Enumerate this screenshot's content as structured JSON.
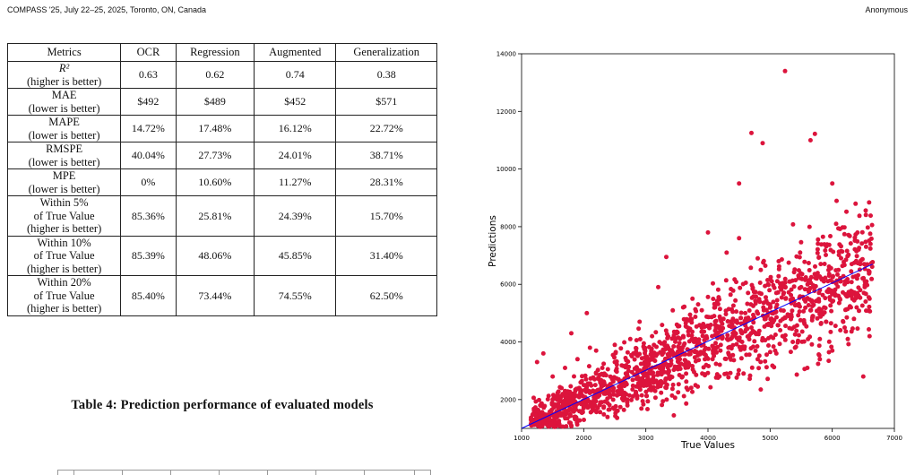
{
  "header": {
    "venue": "COMPASS '25, July 22–25, 2025, Toronto, ON, Canada",
    "author": "Anonymous"
  },
  "table": {
    "caption": "Table 4: Prediction performance of evaluated models",
    "columns": [
      "Metrics",
      "OCR",
      "Regression",
      "Augmented",
      "Generalization"
    ],
    "rows": [
      {
        "metric": [
          "R²",
          "(higher is better)"
        ],
        "values": [
          "0.63",
          "0.62",
          "0.74",
          "0.38"
        ]
      },
      {
        "metric": [
          "MAE",
          "(lower is better)"
        ],
        "values": [
          "$492",
          "$489",
          "$452",
          "$571"
        ]
      },
      {
        "metric": [
          "MAPE",
          "(lower is better)"
        ],
        "values": [
          "14.72%",
          "17.48%",
          "16.12%",
          "22.72%"
        ]
      },
      {
        "metric": [
          "RMSPE",
          "(lower is better)"
        ],
        "values": [
          "40.04%",
          "27.73%",
          "24.01%",
          "38.71%"
        ]
      },
      {
        "metric": [
          "MPE",
          "(lower is better)"
        ],
        "values": [
          "0%",
          "10.60%",
          "11.27%",
          "28.31%"
        ]
      },
      {
        "metric": [
          "Within 5%",
          "of True Value",
          "(higher is better)"
        ],
        "values": [
          "85.36%",
          "25.81%",
          "24.39%",
          "15.70%"
        ]
      },
      {
        "metric": [
          "Within 10%",
          "of True Value",
          "(higher is better)"
        ],
        "values": [
          "85.39%",
          "48.06%",
          "45.85%",
          "31.40%"
        ]
      },
      {
        "metric": [
          "Within 20%",
          "of True Value",
          "(higher is better)"
        ],
        "values": [
          "85.40%",
          "73.44%",
          "74.55%",
          "62.50%"
        ]
      }
    ]
  },
  "chart_data": {
    "type": "scatter",
    "title": "",
    "xlabel": "True Values",
    "ylabel": "Predictions",
    "xlim": [
      1000,
      7000
    ],
    "ylim": [
      1000,
      14000
    ],
    "xticks": [
      1000,
      2000,
      3000,
      4000,
      5000,
      6000,
      7000
    ],
    "yticks": [
      2000,
      4000,
      6000,
      8000,
      10000,
      12000,
      14000
    ],
    "grid": false,
    "point_color": "#dc143c",
    "line_color": "#0000ff",
    "fit_line": {
      "x": [
        1000,
        6650
      ],
      "y": [
        1000,
        6700
      ]
    },
    "series": [
      {
        "values": [
          [
            5240,
            13400
          ],
          [
            4700,
            11250
          ],
          [
            5720,
            11220
          ],
          [
            4880,
            10900
          ],
          [
            5650,
            11000
          ],
          [
            6000,
            9500
          ],
          [
            4500,
            9500
          ],
          [
            4000,
            7800
          ],
          [
            4500,
            7600
          ],
          [
            4300,
            7100
          ],
          [
            3330,
            6950
          ],
          [
            4800,
            6900
          ],
          [
            4850,
            6500
          ],
          [
            6450,
            6700
          ],
          [
            6400,
            6200
          ],
          [
            5500,
            6200
          ],
          [
            6200,
            6000
          ],
          [
            6600,
            4200
          ],
          [
            6500,
            2800
          ],
          [
            4850,
            2350
          ],
          [
            1800,
            4300
          ],
          [
            2050,
            5000
          ],
          [
            2100,
            3800
          ],
          [
            2900,
            4700
          ],
          [
            3200,
            5900
          ],
          [
            3750,
            5500
          ],
          [
            3600,
            5200
          ],
          [
            5000,
            5300
          ],
          [
            5250,
            5500
          ],
          [
            5800,
            5800
          ],
          [
            5950,
            6300
          ],
          [
            6100,
            5600
          ],
          [
            6300,
            5200
          ],
          [
            6350,
            4800
          ],
          [
            6450,
            5800
          ],
          [
            6550,
            6100
          ],
          [
            6600,
            5500
          ],
          [
            6200,
            4500
          ],
          [
            6000,
            3700
          ],
          [
            5800,
            3400
          ],
          [
            5600,
            3100
          ],
          [
            5400,
            3800
          ],
          [
            5200,
            4200
          ],
          [
            4700,
            4500
          ],
          [
            4400,
            4300
          ],
          [
            4100,
            4900
          ],
          [
            3900,
            5100
          ],
          [
            3500,
            4600
          ],
          [
            3100,
            4200
          ],
          [
            2800,
            3600
          ],
          [
            2500,
            3300
          ],
          [
            2300,
            3100
          ],
          [
            2200,
            2900
          ],
          [
            1950,
            2600
          ],
          [
            1700,
            2300
          ],
          [
            1500,
            2000
          ],
          [
            1300,
            1800
          ],
          [
            1200,
            1500
          ],
          [
            1150,
            1300
          ],
          [
            1400,
            1150
          ],
          [
            1600,
            1200
          ],
          [
            1850,
            1400
          ],
          [
            2000,
            1700
          ],
          [
            2350,
            2200
          ],
          [
            2600,
            2400
          ],
          [
            2900,
            2700
          ],
          [
            3150,
            2300
          ],
          [
            3400,
            2800
          ],
          [
            3700,
            3200
          ],
          [
            3950,
            3400
          ],
          [
            4200,
            3700
          ],
          [
            4550,
            4000
          ],
          [
            4950,
            4600
          ],
          [
            5300,
            4900
          ],
          [
            5650,
            5100
          ],
          [
            6000,
            5400
          ],
          [
            1250,
            3300
          ],
          [
            1350,
            3600
          ],
          [
            1500,
            2800
          ],
          [
            1700,
            3100
          ],
          [
            1900,
            3400
          ],
          [
            2200,
            3700
          ],
          [
            2500,
            3900
          ],
          [
            2750,
            4100
          ],
          [
            3000,
            3500
          ],
          [
            3300,
            3900
          ],
          [
            3600,
            4200
          ],
          [
            3900,
            4500
          ],
          [
            4250,
            4800
          ],
          [
            4600,
            5000
          ],
          [
            5100,
            5700
          ],
          [
            5500,
            5900
          ],
          [
            5750,
            6200
          ],
          [
            6100,
            6500
          ],
          [
            3450,
            1450
          ],
          [
            2700,
            1900
          ],
          [
            2400,
            1650
          ],
          [
            3800,
            2500
          ],
          [
            4300,
            2900
          ],
          [
            4800,
            3400
          ],
          [
            5100,
            3600
          ],
          [
            5900,
            4700
          ],
          [
            6250,
            4100
          ]
        ]
      }
    ]
  }
}
